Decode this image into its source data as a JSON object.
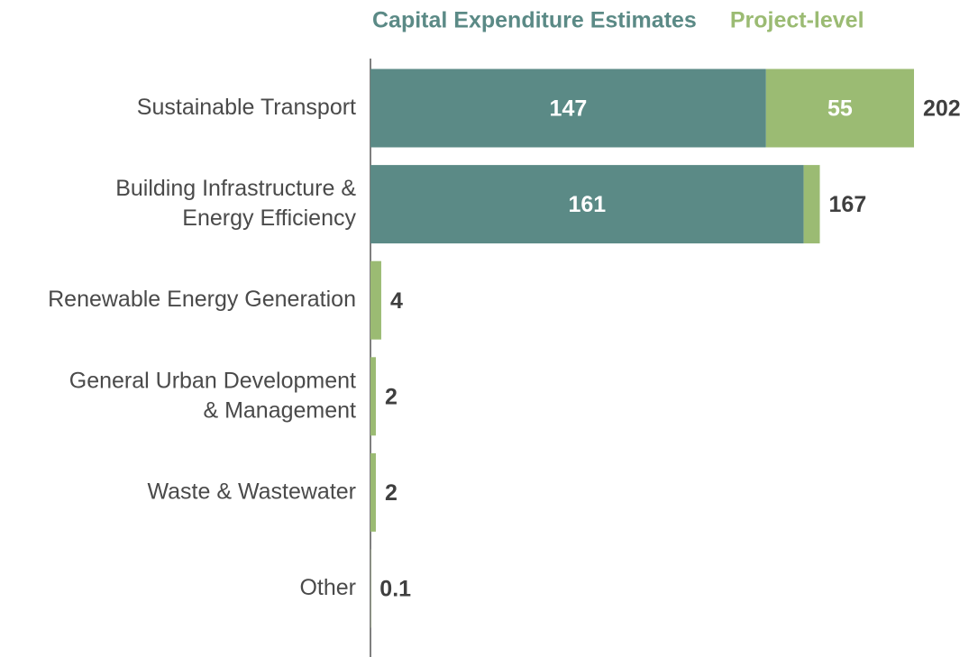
{
  "chart_data": {
    "type": "stacked-bar-horizontal",
    "categories": [
      [
        "Sustainable Transport"
      ],
      [
        "Building Infrastructure &",
        "Energy Efficiency"
      ],
      [
        "Renewable Energy Generation"
      ],
      [
        "General Urban Development",
        "& Management"
      ],
      [
        "Waste & Wastewater"
      ],
      [
        "Other"
      ]
    ],
    "series": [
      {
        "name": "Capital Expenditure Estimates",
        "color": "#5b8a86",
        "values": [
          147,
          161,
          null,
          null,
          null,
          null
        ]
      },
      {
        "name": "Project-level",
        "color": "#9bbb73",
        "values": [
          55,
          6,
          4,
          2,
          2,
          0.1
        ]
      }
    ],
    "totals": [
      202,
      167,
      4,
      2,
      2,
      0.1
    ]
  }
}
